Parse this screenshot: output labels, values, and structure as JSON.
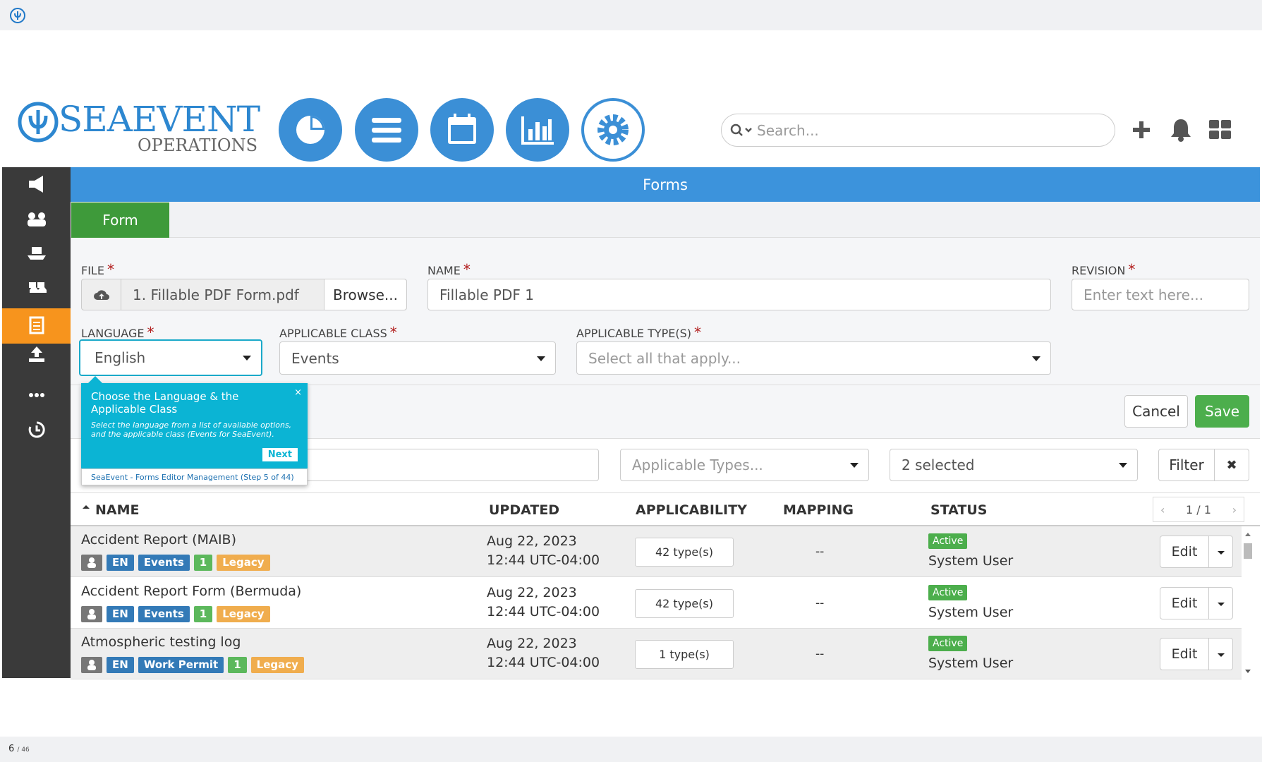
{
  "logo": {
    "name": "SEAEVENT",
    "sub": "OPERATIONS"
  },
  "search": {
    "placeholder": "Search..."
  },
  "page": {
    "title": "Forms",
    "tab": "Form"
  },
  "form": {
    "required_mark": "*",
    "file": {
      "label": "FILE",
      "value": "1. Fillable PDF Form.pdf",
      "button": "Browse..."
    },
    "name": {
      "label": "NAME",
      "value": "Fillable PDF 1"
    },
    "revision": {
      "label": "REVISION",
      "placeholder": "Enter text here..."
    },
    "language": {
      "label": "LANGUAGE",
      "value": "English"
    },
    "applicable_class": {
      "label": "APPLICABLE CLASS",
      "value": "Events"
    },
    "applicable_types": {
      "label": "APPLICABLE TYPE(S)",
      "placeholder": "Select all that apply..."
    },
    "cancel": "Cancel",
    "save": "Save"
  },
  "tooltip": {
    "close": "×",
    "title": "Choose the Language & the Applicable Class",
    "body": "Select the language from a list of available options, and the applicable class (Events for SeaEvent).",
    "next": "Next",
    "footer": "SeaEvent - Forms Editor Management (Step 5 of 44)"
  },
  "filters": {
    "types_placeholder": "Applicable Types...",
    "status": "2 selected",
    "filter": "Filter",
    "clear": "✖"
  },
  "table": {
    "columns": [
      "NAME",
      "UPDATED",
      "APPLICABILITY",
      "MAPPING",
      "STATUS"
    ],
    "pagination": "1 / 1",
    "rows": [
      {
        "name": "Accident Report (MAIB)",
        "tags": [
          "EN",
          "Events",
          "1",
          "Legacy"
        ],
        "date": "Aug 22, 2023",
        "time": "12:44 UTC-04:00",
        "applicability": "42 type(s)",
        "mapping": "--",
        "status": "Active",
        "user": "System User",
        "action": "Edit"
      },
      {
        "name": "Accident Report Form (Bermuda)",
        "tags": [
          "EN",
          "Events",
          "1",
          "Legacy"
        ],
        "date": "Aug 22, 2023",
        "time": "12:44 UTC-04:00",
        "applicability": "42 type(s)",
        "mapping": "--",
        "status": "Active",
        "user": "System User",
        "action": "Edit"
      },
      {
        "name": "Atmospheric testing log",
        "tags": [
          "EN",
          "Work Permit",
          "1",
          "Legacy"
        ],
        "date": "Aug 22, 2023",
        "time": "12:44 UTC-04:00",
        "applicability": "1 type(s)",
        "mapping": "--",
        "status": "Active",
        "user": "System User",
        "action": "Edit"
      }
    ]
  },
  "footer": {
    "page": "6",
    "total": "/ 46"
  }
}
